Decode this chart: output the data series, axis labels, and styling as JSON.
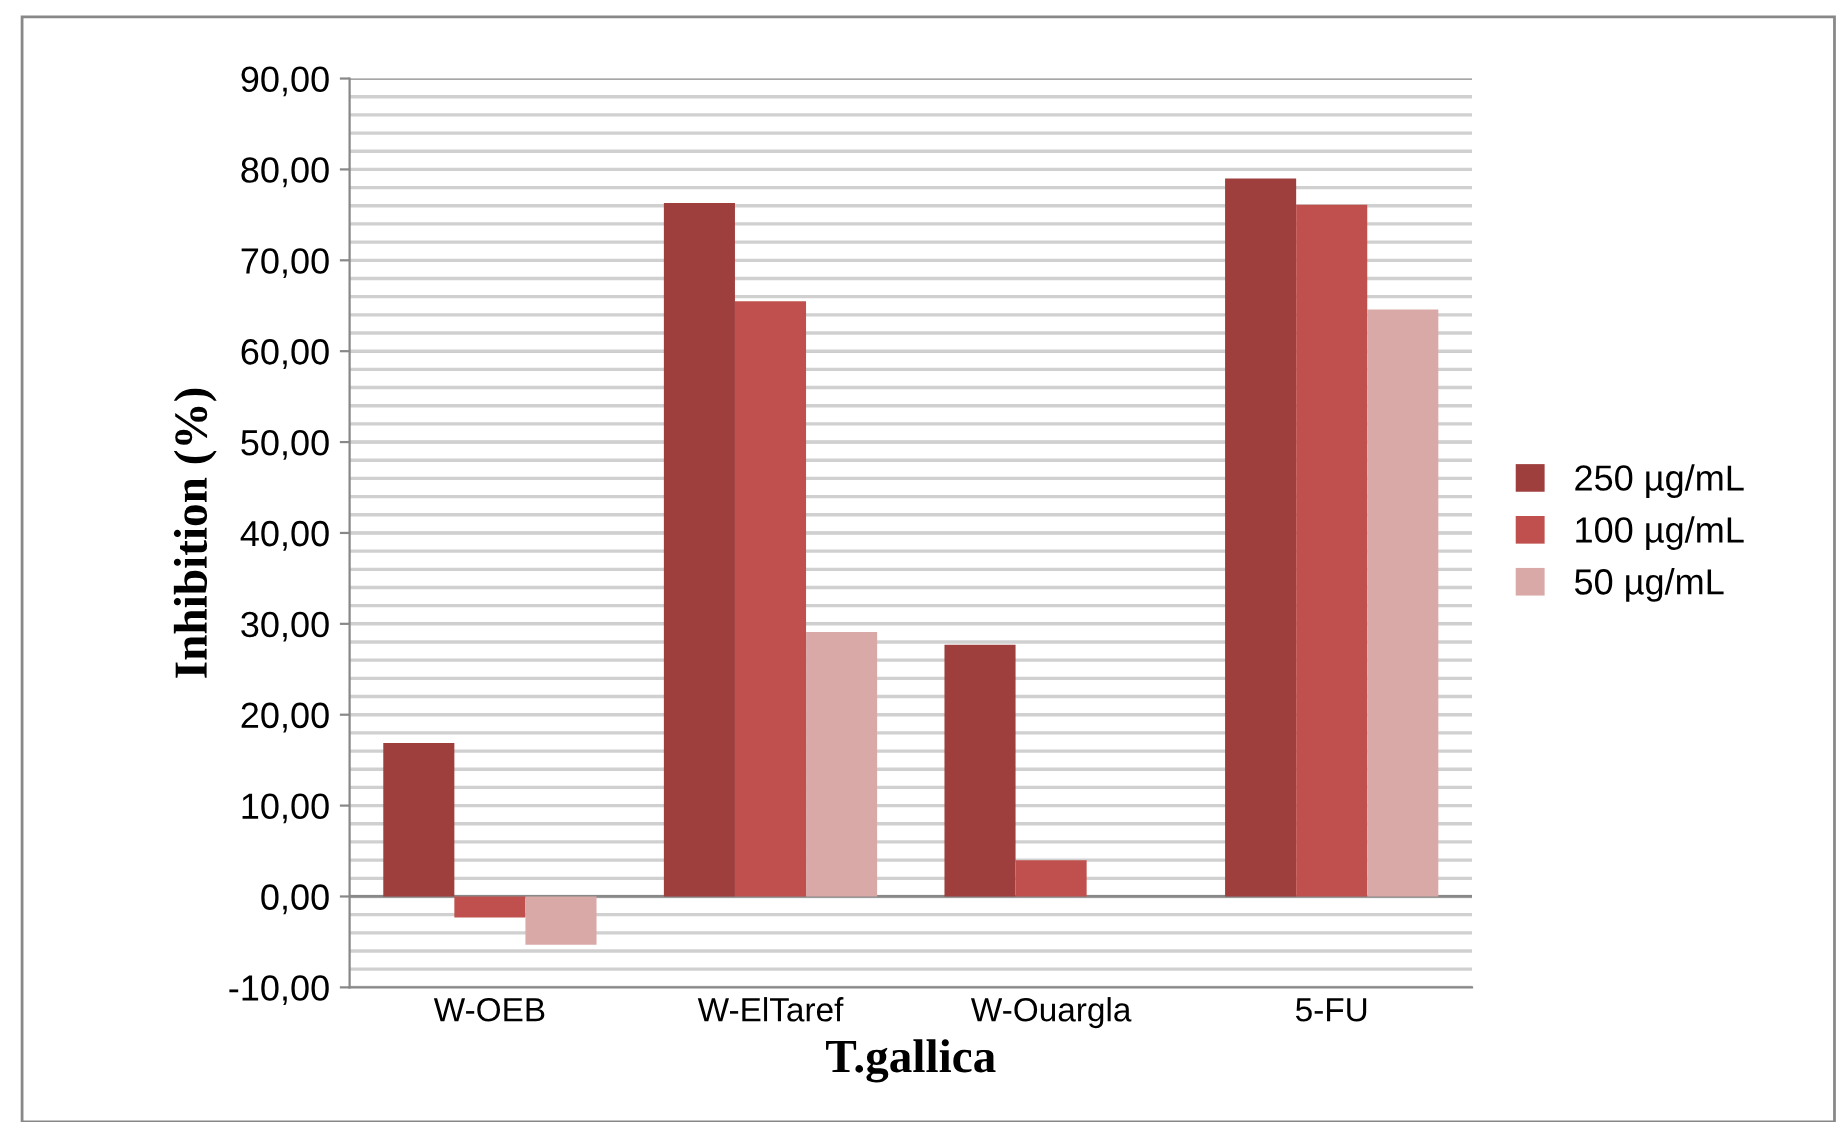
{
  "chart_data": {
    "type": "bar",
    "xlabel": "T.gallica",
    "ylabel": "Inhibition (%)",
    "categories": [
      "W-OEB",
      "W-ElTaref",
      "W-Ouargla",
      "5-FU"
    ],
    "series": [
      {
        "name": "250 µg/mL",
        "color": "#9e3f3e",
        "values": [
          16.9,
          76.3,
          27.7,
          79.0
        ]
      },
      {
        "name": "100 µg/mL",
        "color": "#c0504d",
        "values": [
          -2.3,
          65.5,
          4.0,
          76.1
        ]
      },
      {
        "name": "50 µg/mL",
        "color": "#d9a9a8",
        "values": [
          -5.3,
          29.1,
          null,
          64.6
        ]
      }
    ],
    "ylim": [
      -10,
      90
    ],
    "yticks": [
      {
        "value": -10,
        "label": "-10,00"
      },
      {
        "value": 0,
        "label": "0,00"
      },
      {
        "value": 10,
        "label": "10,00"
      },
      {
        "value": 20,
        "label": "20,00"
      },
      {
        "value": 30,
        "label": "30,00"
      },
      {
        "value": 40,
        "label": "40,00"
      },
      {
        "value": 50,
        "label": "50,00"
      },
      {
        "value": 60,
        "label": "60,00"
      },
      {
        "value": 70,
        "label": "70,00"
      },
      {
        "value": 80,
        "label": "80,00"
      },
      {
        "value": 90,
        "label": "90,00"
      }
    ],
    "grid": "y",
    "legend": "right"
  }
}
